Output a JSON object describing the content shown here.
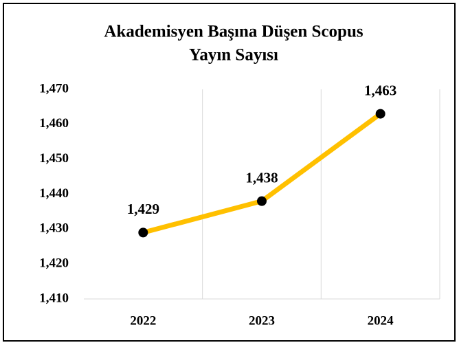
{
  "chart_data": {
    "type": "line",
    "title": [
      "Akademisyen Başına Düşen Scopus",
      "Yayın Sayısı"
    ],
    "categories": [
      "2022",
      "2023",
      "2024"
    ],
    "series": [
      {
        "name": "Akademisyen Başına Düşen Scopus Yayın Sayısı",
        "color": "#ffc000",
        "values": [
          1429,
          1438,
          1463
        ],
        "value_labels": [
          "1,429",
          "1,438",
          "1,463"
        ]
      }
    ],
    "ylim": [
      1410,
      1470
    ],
    "yticks": [
      {
        "value": 1410,
        "label": "1,410"
      },
      {
        "value": 1420,
        "label": "1,420"
      },
      {
        "value": 1430,
        "label": "1,430"
      },
      {
        "value": 1440,
        "label": "1,440"
      },
      {
        "value": 1450,
        "label": "1,450"
      },
      {
        "value": 1460,
        "label": "1,460"
      },
      {
        "value": 1470,
        "label": "1,470"
      }
    ],
    "grid": "x",
    "marker_color": "#000000"
  }
}
